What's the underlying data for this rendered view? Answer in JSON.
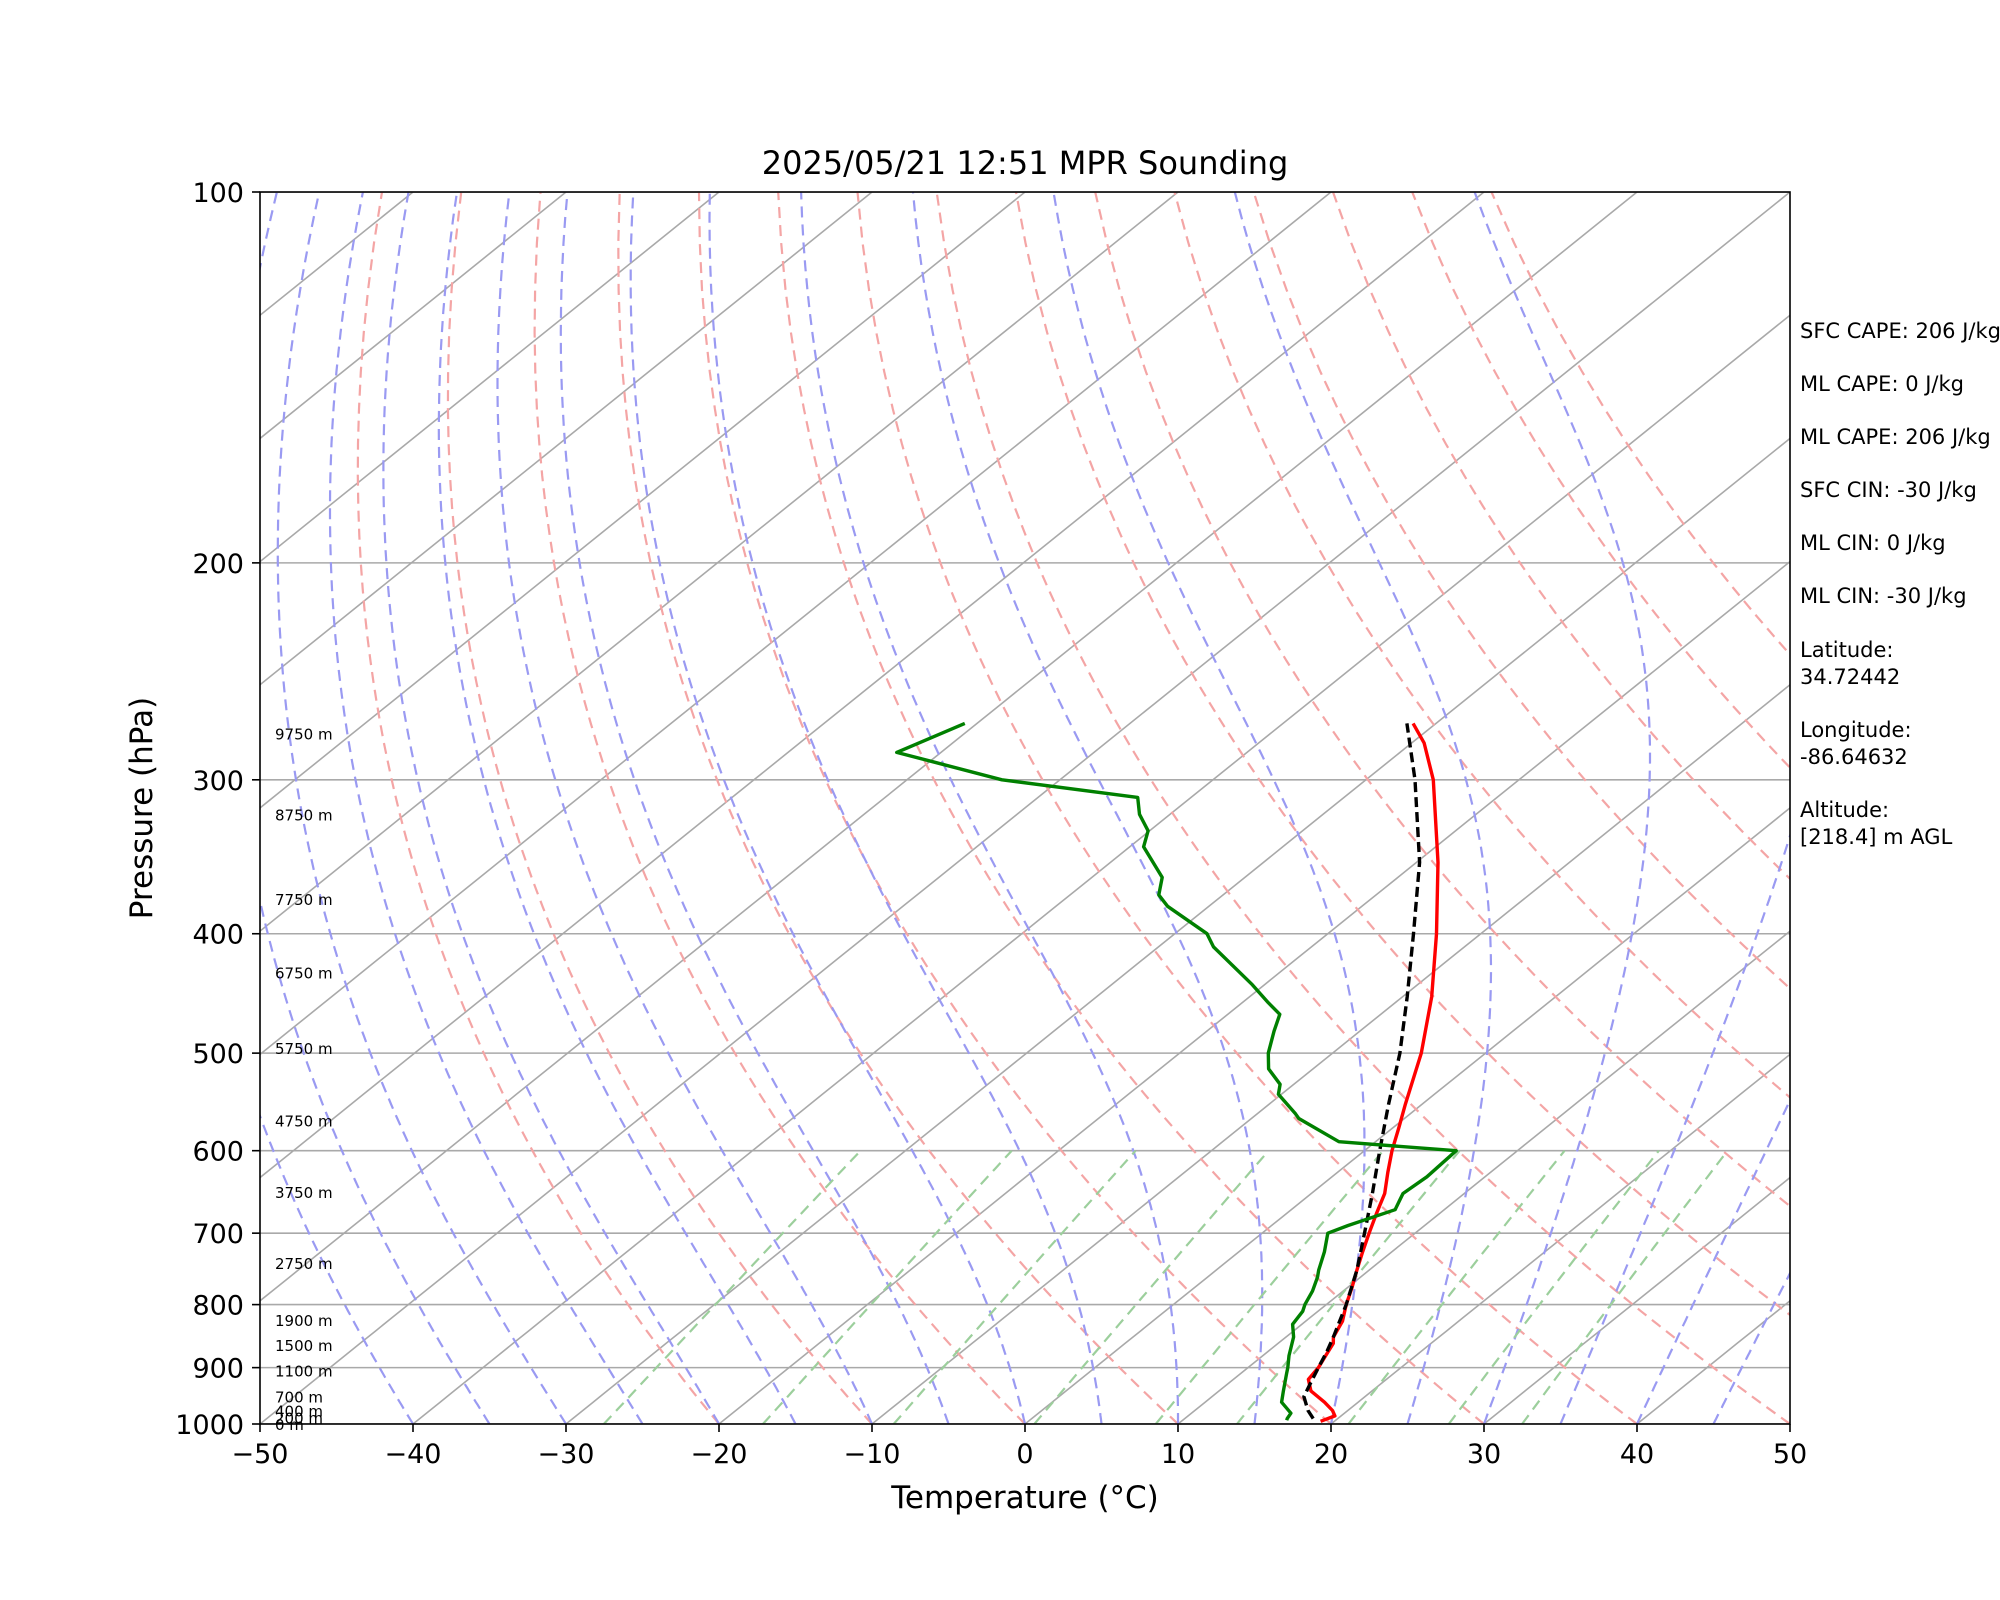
{
  "chart_data": {
    "type": "line",
    "title": "2025/05/21 12:51 MPR Sounding",
    "xlabel": "Temperature (°C)",
    "ylabel": "Pressure (hPa)",
    "xlim": [
      -50,
      50
    ],
    "ylim": [
      1000,
      100
    ],
    "y_scale": "log",
    "grid": true,
    "x_ticks": [
      -50,
      -40,
      -30,
      -20,
      -10,
      0,
      10,
      20,
      30,
      40,
      50
    ],
    "x_tick_labels": [
      "−50",
      "−40",
      "−30",
      "−20",
      "−10",
      "0",
      "10",
      "20",
      "30",
      "40",
      "50"
    ],
    "y_ticks": [
      1000,
      900,
      800,
      700,
      600,
      500,
      400,
      300,
      200,
      100
    ],
    "y_tick_labels": [
      "1000",
      "900",
      "800",
      "700",
      "600",
      "500",
      "400",
      "300",
      "200",
      "100"
    ],
    "series": [
      {
        "color": "#ff0000",
        "style": "solid",
        "pressure": [
          995,
          985,
          975,
          960,
          940,
          920,
          900,
          880,
          860,
          850,
          825,
          800,
          775,
          750,
          725,
          700,
          675,
          650,
          625,
          600,
          575,
          550,
          500,
          450,
          400,
          350,
          300,
          280,
          270
        ],
        "temperature": [
          19.1,
          19.6,
          19.0,
          17.8,
          16.0,
          14.9,
          14.6,
          14.1,
          13.6,
          13.1,
          12.4,
          11.3,
          10.3,
          9.2,
          8.1,
          7.0,
          5.9,
          4.8,
          3.3,
          1.8,
          0.4,
          -1.1,
          -4.2,
          -8.1,
          -12.9,
          -18.6,
          -25.6,
          -29.2,
          -31.5
        ]
      },
      {
        "color": "#000000",
        "style": "dashed",
        "pressure": [
          990,
          975,
          950,
          925,
          900,
          875,
          850,
          800,
          750,
          700,
          650,
          600,
          550,
          500,
          450,
          400,
          350,
          300,
          270
        ],
        "temperature": [
          18.4,
          17.4,
          16.0,
          15.3,
          14.6,
          13.9,
          13.1,
          11.3,
          9.2,
          6.7,
          4.0,
          1.0,
          -2.2,
          -5.6,
          -9.7,
          -14.4,
          -19.8,
          -26.8,
          -31.9
        ]
      },
      {
        "color": "#008000",
        "style": "solid",
        "pressure": [
          993,
          990,
          980,
          960,
          940,
          910,
          900,
          880,
          850,
          830,
          810,
          800,
          780,
          760,
          750,
          725,
          700,
          690,
          670,
          650,
          630,
          600,
          590,
          565,
          560,
          540,
          530,
          515,
          500,
          480,
          465,
          455,
          440,
          410,
          400,
          380,
          372,
          360,
          340,
          330,
          320,
          310,
          300,
          290,
          285,
          270
        ],
        "temperature": [
          16.8,
          16.7,
          16.5,
          15.0,
          14.2,
          13.0,
          12.6,
          11.7,
          10.5,
          9.4,
          9.0,
          8.6,
          8.0,
          7.2,
          6.7,
          5.6,
          4.3,
          5.0,
          6.8,
          6.0,
          6.2,
          6.0,
          -2.4,
          -6.9,
          -7.5,
          -10.2,
          -10.9,
          -12.9,
          -14.2,
          -15.6,
          -16.6,
          -18.3,
          -20.8,
          -26.4,
          -27.9,
          -32.7,
          -34.2,
          -35.4,
          -39.1,
          -40.1,
          -42.0,
          -43.5,
          -53.8,
          -59.8,
          -62.9,
          -60.8
        ]
      }
    ],
    "height_labels": [
      "9750 m",
      "8750 m",
      "7750 m",
      "6750 m",
      "5750 m",
      "4750 m",
      "3750 m",
      "2750 m",
      "1900 m",
      "1500 m",
      "1100 m",
      "700 m",
      "400 m",
      "200 m",
      "0 m"
    ],
    "height_label_pressures": [
      275,
      320,
      375,
      430,
      495,
      567,
      648,
      740,
      823,
      863,
      905,
      950,
      975,
      988,
      1000
    ]
  },
  "annotations": [
    "SFC CAPE: 206 J/kg",
    "ML CAPE: 0 J/kg",
    "ML CAPE: 206 J/kg",
    "SFC CIN: -30 J/kg",
    "ML CIN: 0 J/kg",
    "ML CIN: -30 J/kg",
    "Latitude:",
    "34.72442",
    "Longitude:",
    "-86.64632",
    "Altitude:",
    "[218.4] m AGL"
  ],
  "colors": {
    "temperature": "#ff0000",
    "dewpoint": "#008000",
    "parcel": "#000000",
    "isotherm_grid": "#a9a9a9",
    "dry_adiabat": "#f4a5a5",
    "moist_adiabat": "#9a9af2",
    "mixing_ratio": "#9ccf9c"
  }
}
